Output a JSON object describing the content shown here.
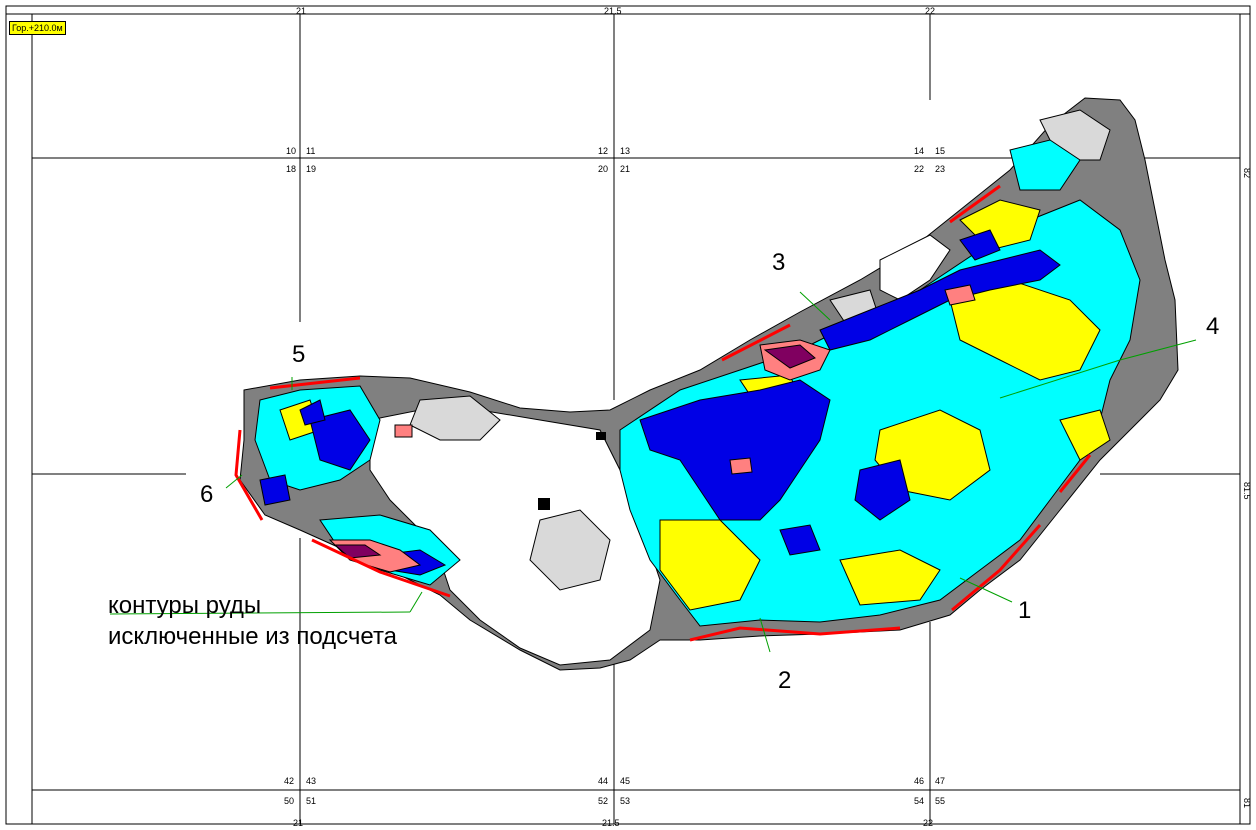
{
  "level_label": "Гор.+210.0м",
  "top_axis": [
    "21",
    "21.5",
    "22"
  ],
  "bottom_axis": [
    "21",
    "21.5",
    "22"
  ],
  "right_axis": [
    "82",
    "81.5",
    "81"
  ],
  "cell_numbers": {
    "row1_above": [
      [
        "10",
        "11"
      ],
      [
        "12",
        "13"
      ],
      [
        "14",
        "15"
      ]
    ],
    "row1_below": [
      [
        "18",
        "19"
      ],
      [
        "20",
        "21"
      ],
      [
        "22",
        "23"
      ]
    ],
    "row2_above": [
      [
        "42",
        "43"
      ],
      [
        "44",
        "45"
      ],
      [
        "46",
        "47"
      ]
    ],
    "row2_below": [
      [
        "50",
        "51"
      ],
      [
        "52",
        "53"
      ],
      [
        "54",
        "55"
      ]
    ]
  },
  "callouts": [
    "1",
    "2",
    "3",
    "4",
    "5",
    "6"
  ],
  "legend_text_line1": "контуры руды",
  "legend_text_line2": "исключенные из подсчета",
  "colors": {
    "ore_dark_blue": "#0000e6",
    "ore_cyan": "#00ffff",
    "ore_yellow": "#ffff00",
    "rock_dark_gray": "#808080",
    "rock_light_gray": "#d9d9d9",
    "ore_pink": "#ff8080",
    "ore_purple": "#800060",
    "excluded_contour": "#ff0000",
    "callout_line": "#00a000"
  }
}
